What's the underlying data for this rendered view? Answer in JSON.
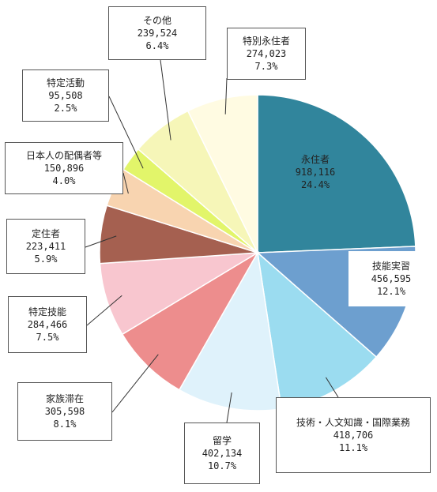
{
  "chart_data": {
    "type": "pie",
    "slices": [
      {
        "name": "永住者",
        "count": "918,116",
        "percent": "24.4%",
        "value": 918116,
        "color": "#31859c"
      },
      {
        "name": "技能実習",
        "count": "456,595",
        "percent": "12.1%",
        "value": 456595,
        "color": "#6d9fcf"
      },
      {
        "name": "技術・人文知識・国際業務",
        "count": "418,706",
        "percent": "11.1%",
        "value": 418706,
        "color": "#9bdcf0"
      },
      {
        "name": "留学",
        "count": "402,134",
        "percent": "10.7%",
        "value": 402134,
        "color": "#dff2fb"
      },
      {
        "name": "家族滞在",
        "count": "305,598",
        "percent": "8.1%",
        "value": 305598,
        "color": "#ed8d8d"
      },
      {
        "name": "特定技能",
        "count": "284,466",
        "percent": "7.5%",
        "value": 284466,
        "color": "#f8c6cf"
      },
      {
        "name": "定住者",
        "count": "223,411",
        "percent": "5.9%",
        "value": 223411,
        "color": "#a56050"
      },
      {
        "name": "日本人の配偶者等",
        "count": "150,896",
        "percent": "4.0%",
        "value": 150896,
        "color": "#f8d4b0"
      },
      {
        "name": "特定活動",
        "count": "95,508",
        "percent": "2.5%",
        "value": 95508,
        "color": "#e2f56a"
      },
      {
        "name": "その他",
        "count": "239,524",
        "percent": "6.4%",
        "value": 239524,
        "color": "#f6f6b8"
      },
      {
        "name": "特別永住者",
        "count": "274,023",
        "percent": "7.3%",
        "value": 274023,
        "color": "#fffbe2"
      }
    ],
    "start_angle": "12 o'clock",
    "direction": "clockwise"
  }
}
